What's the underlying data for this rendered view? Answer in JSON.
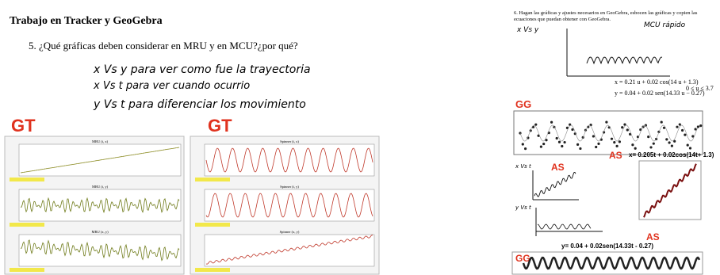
{
  "left": {
    "title": "Trabajo en Tracker y GeoGebra",
    "question": "5.  ¿Qué gráficas deben considerar en MRU y en MCU?¿por qué?",
    "answers": [
      "x Vs y  para  ver  como  fue  la  trayectoria",
      "x Vs t  para  ver  cuando  ocurrio",
      "y  Vs t  para  diferenciar  los  movimiento"
    ],
    "labels": [
      "GT",
      "GT"
    ],
    "plots_left": [
      "MRU (t, x)",
      "MRU (t, y)",
      "MRU (x, y)"
    ],
    "plots_right": [
      "Spinner (t, x)",
      "Spinner (t, y)",
      "Spinner (x, y)"
    ]
  },
  "right": {
    "question": "6.  Hagan las gráficas y ajustes necesarios en GeoGebra, esbocen las gráficas y copien las",
    "question2": "ecuaciones que puedan obtener con GeoGebra.",
    "sketch_label": "x Vs y",
    "sketch_note": "MCU rápido",
    "equations": [
      "x = 0.21 u + 0.02 cos(14 u + 1.3)",
      "y = 0.04 + 0.02 sen(14.33 u − 0.27)",
      "0 ≤ u ≤ 3.7"
    ],
    "labels": [
      "GG",
      "AS",
      "AS",
      "GG",
      "AS",
      "GG"
    ],
    "fit_x": "x= 0.205t + 0.02cos(14t+ 1.3)",
    "fit_y": "y= 0.04 + 0.02sen(14.33t - 0.27)",
    "sketch_x": "x Vs t",
    "sketch_y": "y Vs t"
  }
}
